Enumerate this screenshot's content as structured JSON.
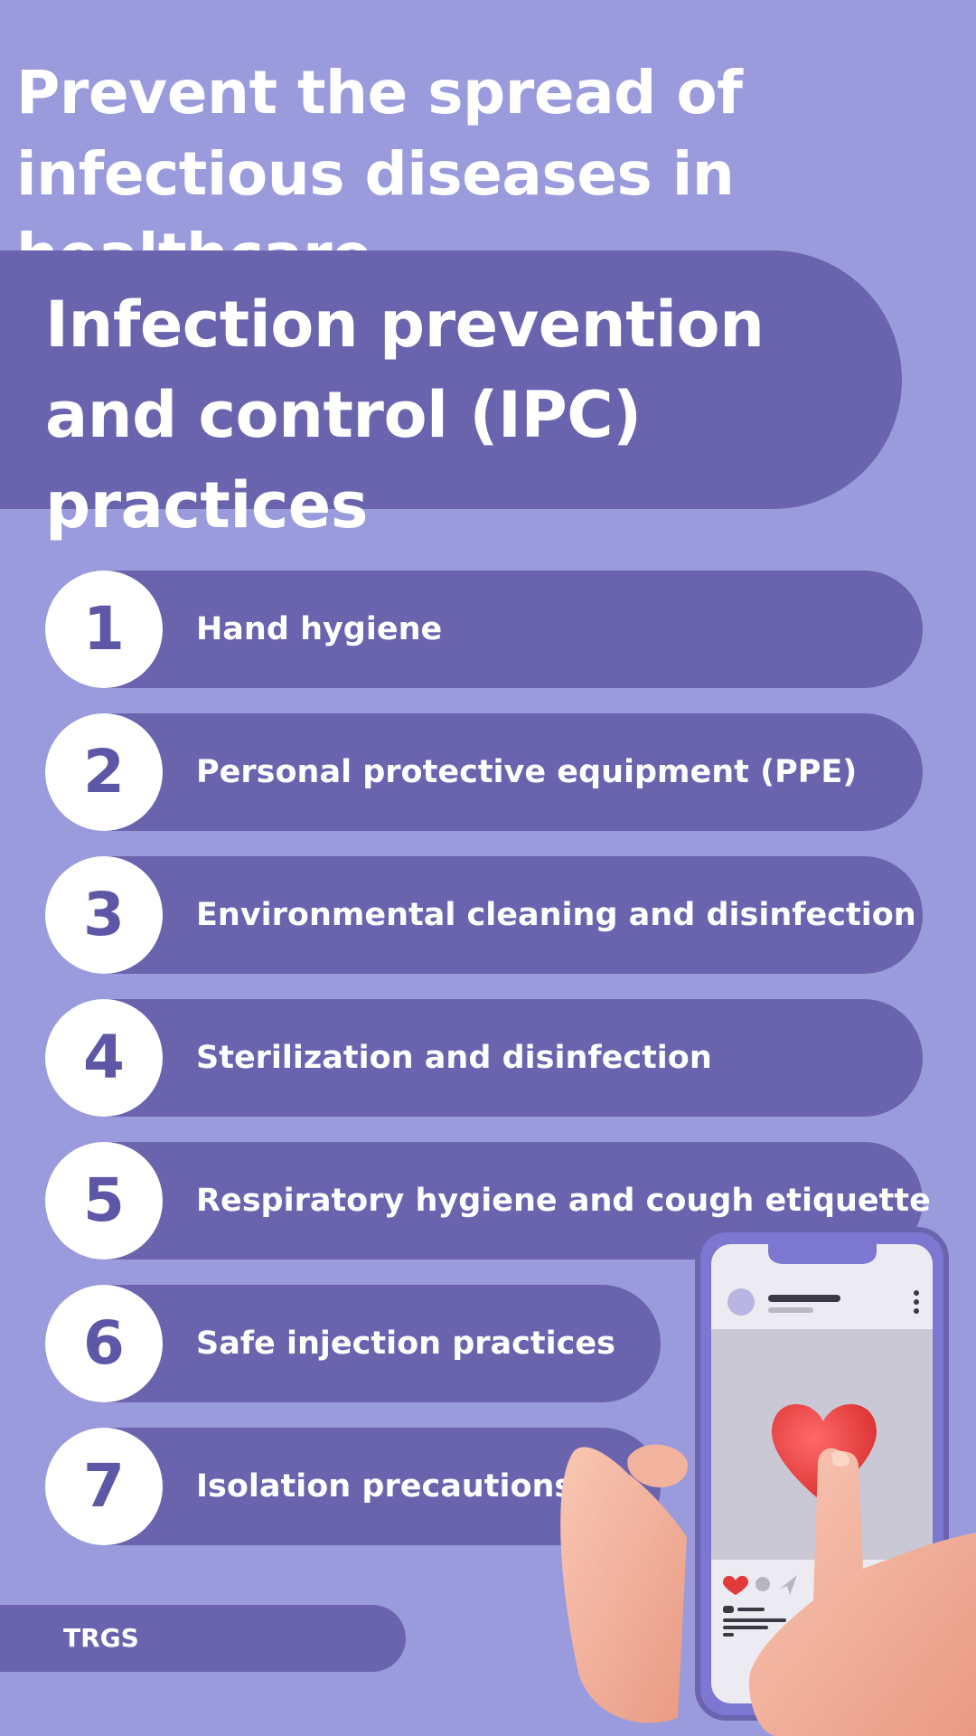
{
  "headline": "Prevent the spread of infectious diseases in healthcare",
  "banner_title": "Infection prevention and control (IPC) practices",
  "items": [
    {
      "number": "1",
      "label": "Hand hygiene"
    },
    {
      "number": "2",
      "label": "Personal protective equipment (PPE)"
    },
    {
      "number": "3",
      "label": "Environmental cleaning and disinfection"
    },
    {
      "number": "4",
      "label": "Sterilization and disinfection"
    },
    {
      "number": "5",
      "label": "Respiratory hygiene and cough etiquette"
    },
    {
      "number": "6",
      "label": "Safe injection practices"
    },
    {
      "number": "7",
      "label": "Isolation precautions"
    }
  ],
  "footer": "TRGS",
  "colors": {
    "background": "#999bdc",
    "pill": "#6a63ad",
    "number_circle": "#ffffff",
    "number_text": "#5e56a6",
    "text": "#ffffff"
  },
  "illustration": {
    "icons": [
      "phone-icon",
      "heart-icon",
      "hand-icon",
      "like-icon",
      "comment-icon",
      "share-icon",
      "more-options-icon"
    ]
  }
}
